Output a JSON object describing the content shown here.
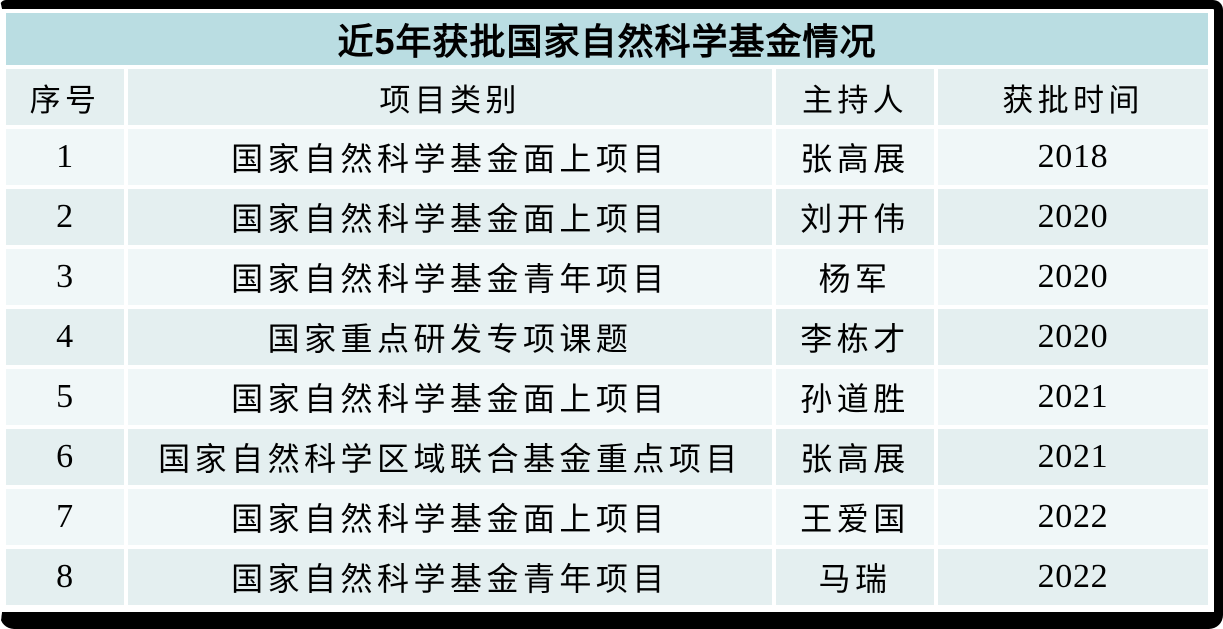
{
  "title": "近5年获批国家自然科学基金情况",
  "columns": {
    "no": "序号",
    "category": "项目类别",
    "pi": "主持人",
    "year": "获批时间"
  },
  "rows": [
    {
      "no": "1",
      "category": "国家自然科学基金面上项目",
      "pi": "张高展",
      "year": "2018"
    },
    {
      "no": "2",
      "category": "国家自然科学基金面上项目",
      "pi": "刘开伟",
      "year": "2020"
    },
    {
      "no": "3",
      "category": "国家自然科学基金青年项目",
      "pi": "杨军",
      "year": "2020"
    },
    {
      "no": "4",
      "category": "国家重点研发专项课题",
      "pi": "李栋才",
      "year": "2020"
    },
    {
      "no": "5",
      "category": "国家自然科学基金面上项目",
      "pi": "孙道胜",
      "year": "2021"
    },
    {
      "no": "6",
      "category": "国家自然科学区域联合基金重点项目",
      "pi": "张高展",
      "year": "2021"
    },
    {
      "no": "7",
      "category": "国家自然科学基金面上项目",
      "pi": "王爱国",
      "year": "2022"
    },
    {
      "no": "8",
      "category": "国家自然科学基金青年项目",
      "pi": "马瑞",
      "year": "2022"
    }
  ],
  "colors": {
    "title_bg": "#badde2",
    "header_bg": "#e4eff0",
    "row_odd_bg": "#f0f7f8",
    "row_even_bg": "#e4eff0",
    "separator": "#ffffff",
    "frame": "#000000",
    "text": "#000000"
  }
}
